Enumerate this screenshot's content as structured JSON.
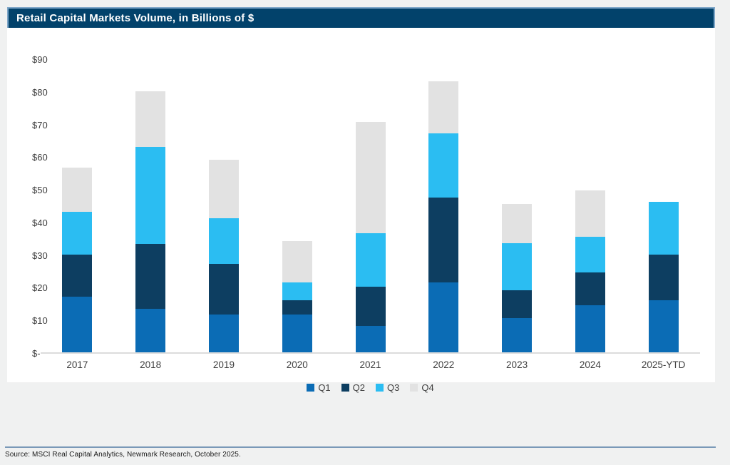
{
  "page": {
    "title": "Retail Capital Markets Volume, in Billions of $",
    "source_note": "Source: MSCI Real Capital Analytics, Newmark Research, October 2025."
  },
  "colors": {
    "page_background": "#f0f1f1",
    "panel_background": "#ffffff",
    "title_bar_background": "#02426b",
    "title_bar_border": "#7fa7c9",
    "axis_text": "#404040",
    "axis_line": "#dcdcdc",
    "footer_rule": "#7a99b8",
    "q1": "#0b6cb5",
    "q2": "#0d3e61",
    "q3": "#2bbdf2",
    "q4": "#e2e2e2"
  },
  "chart_data": {
    "type": "bar",
    "variant": "stacked",
    "title": "Retail Capital Markets Volume, in Billions of $",
    "categories": [
      "2017",
      "2018",
      "2019",
      "2020",
      "2021",
      "2022",
      "2023",
      "2024",
      "2025-YTD"
    ],
    "series": [
      {
        "name": "Q1",
        "color_key": "q1",
        "values": [
          17,
          13.3,
          11.5,
          11.5,
          8,
          21.5,
          10.5,
          14.5,
          16
        ]
      },
      {
        "name": "Q2",
        "color_key": "q2",
        "values": [
          13,
          20,
          15.5,
          4.5,
          12,
          26,
          8.5,
          10,
          14
        ]
      },
      {
        "name": "Q3",
        "color_key": "q3",
        "values": [
          13,
          29.7,
          14,
          5.5,
          16.5,
          19.5,
          14.5,
          11,
          16
        ]
      },
      {
        "name": "Q4",
        "color_key": "q4",
        "values": [
          13.5,
          17,
          18,
          12.5,
          34,
          16,
          12,
          14,
          0
        ]
      }
    ],
    "totals": [
      56.5,
      80,
      59,
      34,
      70.5,
      83,
      45.5,
      49.5,
      46
    ],
    "xlabel": "",
    "ylabel": "",
    "ylim": [
      0,
      90
    ],
    "ytick_step": 10,
    "ytick_labels": [
      "$-",
      "$10",
      "$20",
      "$30",
      "$40",
      "$50",
      "$60",
      "$70",
      "$80",
      "$90"
    ],
    "grid": false,
    "legend_position": "bottom",
    "legend_labels": [
      "Q1",
      "Q2",
      "Q3",
      "Q4"
    ]
  }
}
